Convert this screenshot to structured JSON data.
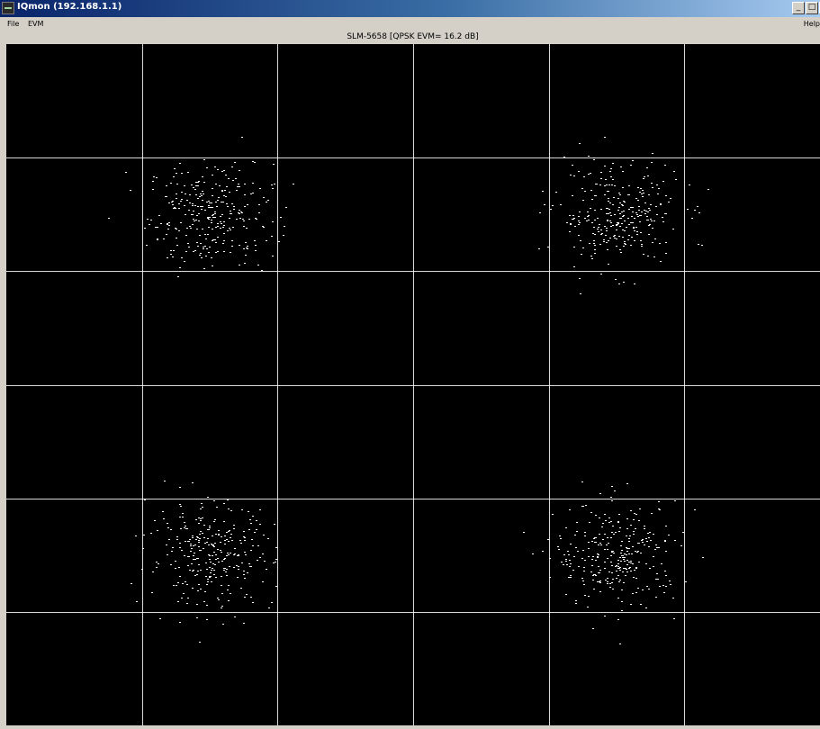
{
  "window": {
    "title": "IQmon (192.168.1.1)",
    "minimize_glyph": "_",
    "maximize_glyph": "□",
    "close_glyph": "x"
  },
  "menu": {
    "items": [
      "File",
      "EVM",
      "Help"
    ]
  },
  "plot": {
    "title": "SLM-5658 [QPSK EVM= 16.2 dB]",
    "background_color": "#000000",
    "grid_color": "#ffffff",
    "point_color": "#ffffff"
  },
  "chart_data": {
    "type": "scatter",
    "title": "SLM-5658 [QPSK EVM= 16.2 dB]",
    "xlabel": "",
    "ylabel": "",
    "xlim": [
      -3,
      3
    ],
    "ylim": [
      -3,
      3
    ],
    "grid": true,
    "grid_divisions": 6,
    "series": [
      {
        "name": "",
        "clusters": [
          {
            "center": [
              -1.5,
              1.5
            ],
            "spread": 0.23
          },
          {
            "center": [
              1.5,
              1.5
            ],
            "spread": 0.23
          },
          {
            "center": [
              -1.5,
              -1.5
            ],
            "spread": 0.23
          },
          {
            "center": [
              1.5,
              -1.5
            ],
            "spread": 0.23
          }
        ],
        "points_per_cluster": 300
      }
    ]
  }
}
